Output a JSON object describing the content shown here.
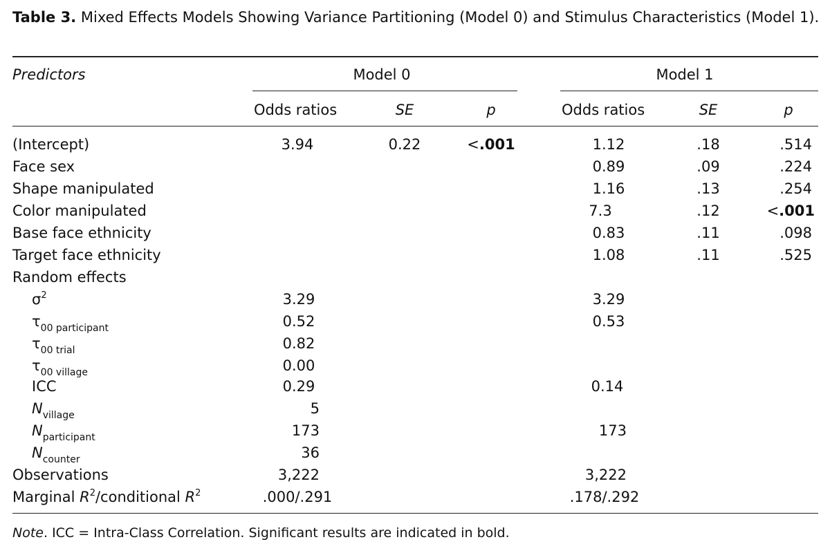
{
  "caption": {
    "label": "Table 3.",
    "text": "Mixed Effects Models Showing Variance Partitioning (Model 0) and Stimulus Characteristics (Model 1)."
  },
  "header": {
    "predictors": "Predictors",
    "model0": "Model 0",
    "model1": "Model 1",
    "odds": "Odds ratios",
    "se": "SE",
    "p": "p"
  },
  "rows": {
    "intercept": {
      "label": "(Intercept)",
      "m0_or": "3.94",
      "m0_se": "0.22",
      "m0_p_sym": "<",
      "m0_p": ".001",
      "m1_or": "1.12",
      "m1_se": ".18",
      "m1_p": ".514"
    },
    "face_sex": {
      "label": "Face sex",
      "m1_or": "0.89",
      "m1_se": ".09",
      "m1_p": ".224"
    },
    "shape": {
      "label": "Shape manipulated",
      "m1_or": "1.16",
      "m1_se": ".13",
      "m1_p": ".254"
    },
    "color": {
      "label": "Color manipulated",
      "m1_or": "7.3",
      "m1_se": ".12",
      "m1_p_sym": "<",
      "m1_p": ".001"
    },
    "base_eth": {
      "label": "Base face ethnicity",
      "m1_or": "0.83",
      "m1_se": ".11",
      "m1_p": ".098"
    },
    "target_eth": {
      "label": "Target face ethnicity",
      "m1_or": "1.08",
      "m1_se": ".11",
      "m1_p": ".525"
    }
  },
  "random": {
    "heading": "Random effects",
    "sigma": {
      "sym": "σ",
      "sup": "2",
      "m0": "3.29",
      "m1": "3.29"
    },
    "tau_participant": {
      "sym": "τ",
      "sub": "00 participant",
      "m0": "0.52",
      "m1": "0.53"
    },
    "tau_trial": {
      "sym": "τ",
      "sub": "00 trial",
      "m0": "0.82"
    },
    "tau_village": {
      "sym": "τ",
      "sub": "00 village",
      "m0": "0.00"
    },
    "icc": {
      "label": "ICC",
      "m0": "0.29",
      "m1": "0.14"
    },
    "n_village": {
      "sym": "N",
      "sub": "village",
      "m0": "5"
    },
    "n_participant": {
      "sym": "N",
      "sub": "participant",
      "m0": "173",
      "m1": "173"
    },
    "n_counter": {
      "sym": "N",
      "sub": "counter",
      "m0": "36"
    }
  },
  "observations": {
    "label": "Observations",
    "m0": "3,222",
    "m1": "3,222"
  },
  "r2": {
    "pre": "Marginal ",
    "r": "R",
    "sup1": "2",
    "mid": "/conditional ",
    "sup2": "2",
    "m0": ".000/.291",
    "m1": ".178/.292"
  },
  "note": {
    "label": "Note",
    "text": ". ICC = Intra-Class Correlation. Significant results are indicated in bold."
  }
}
